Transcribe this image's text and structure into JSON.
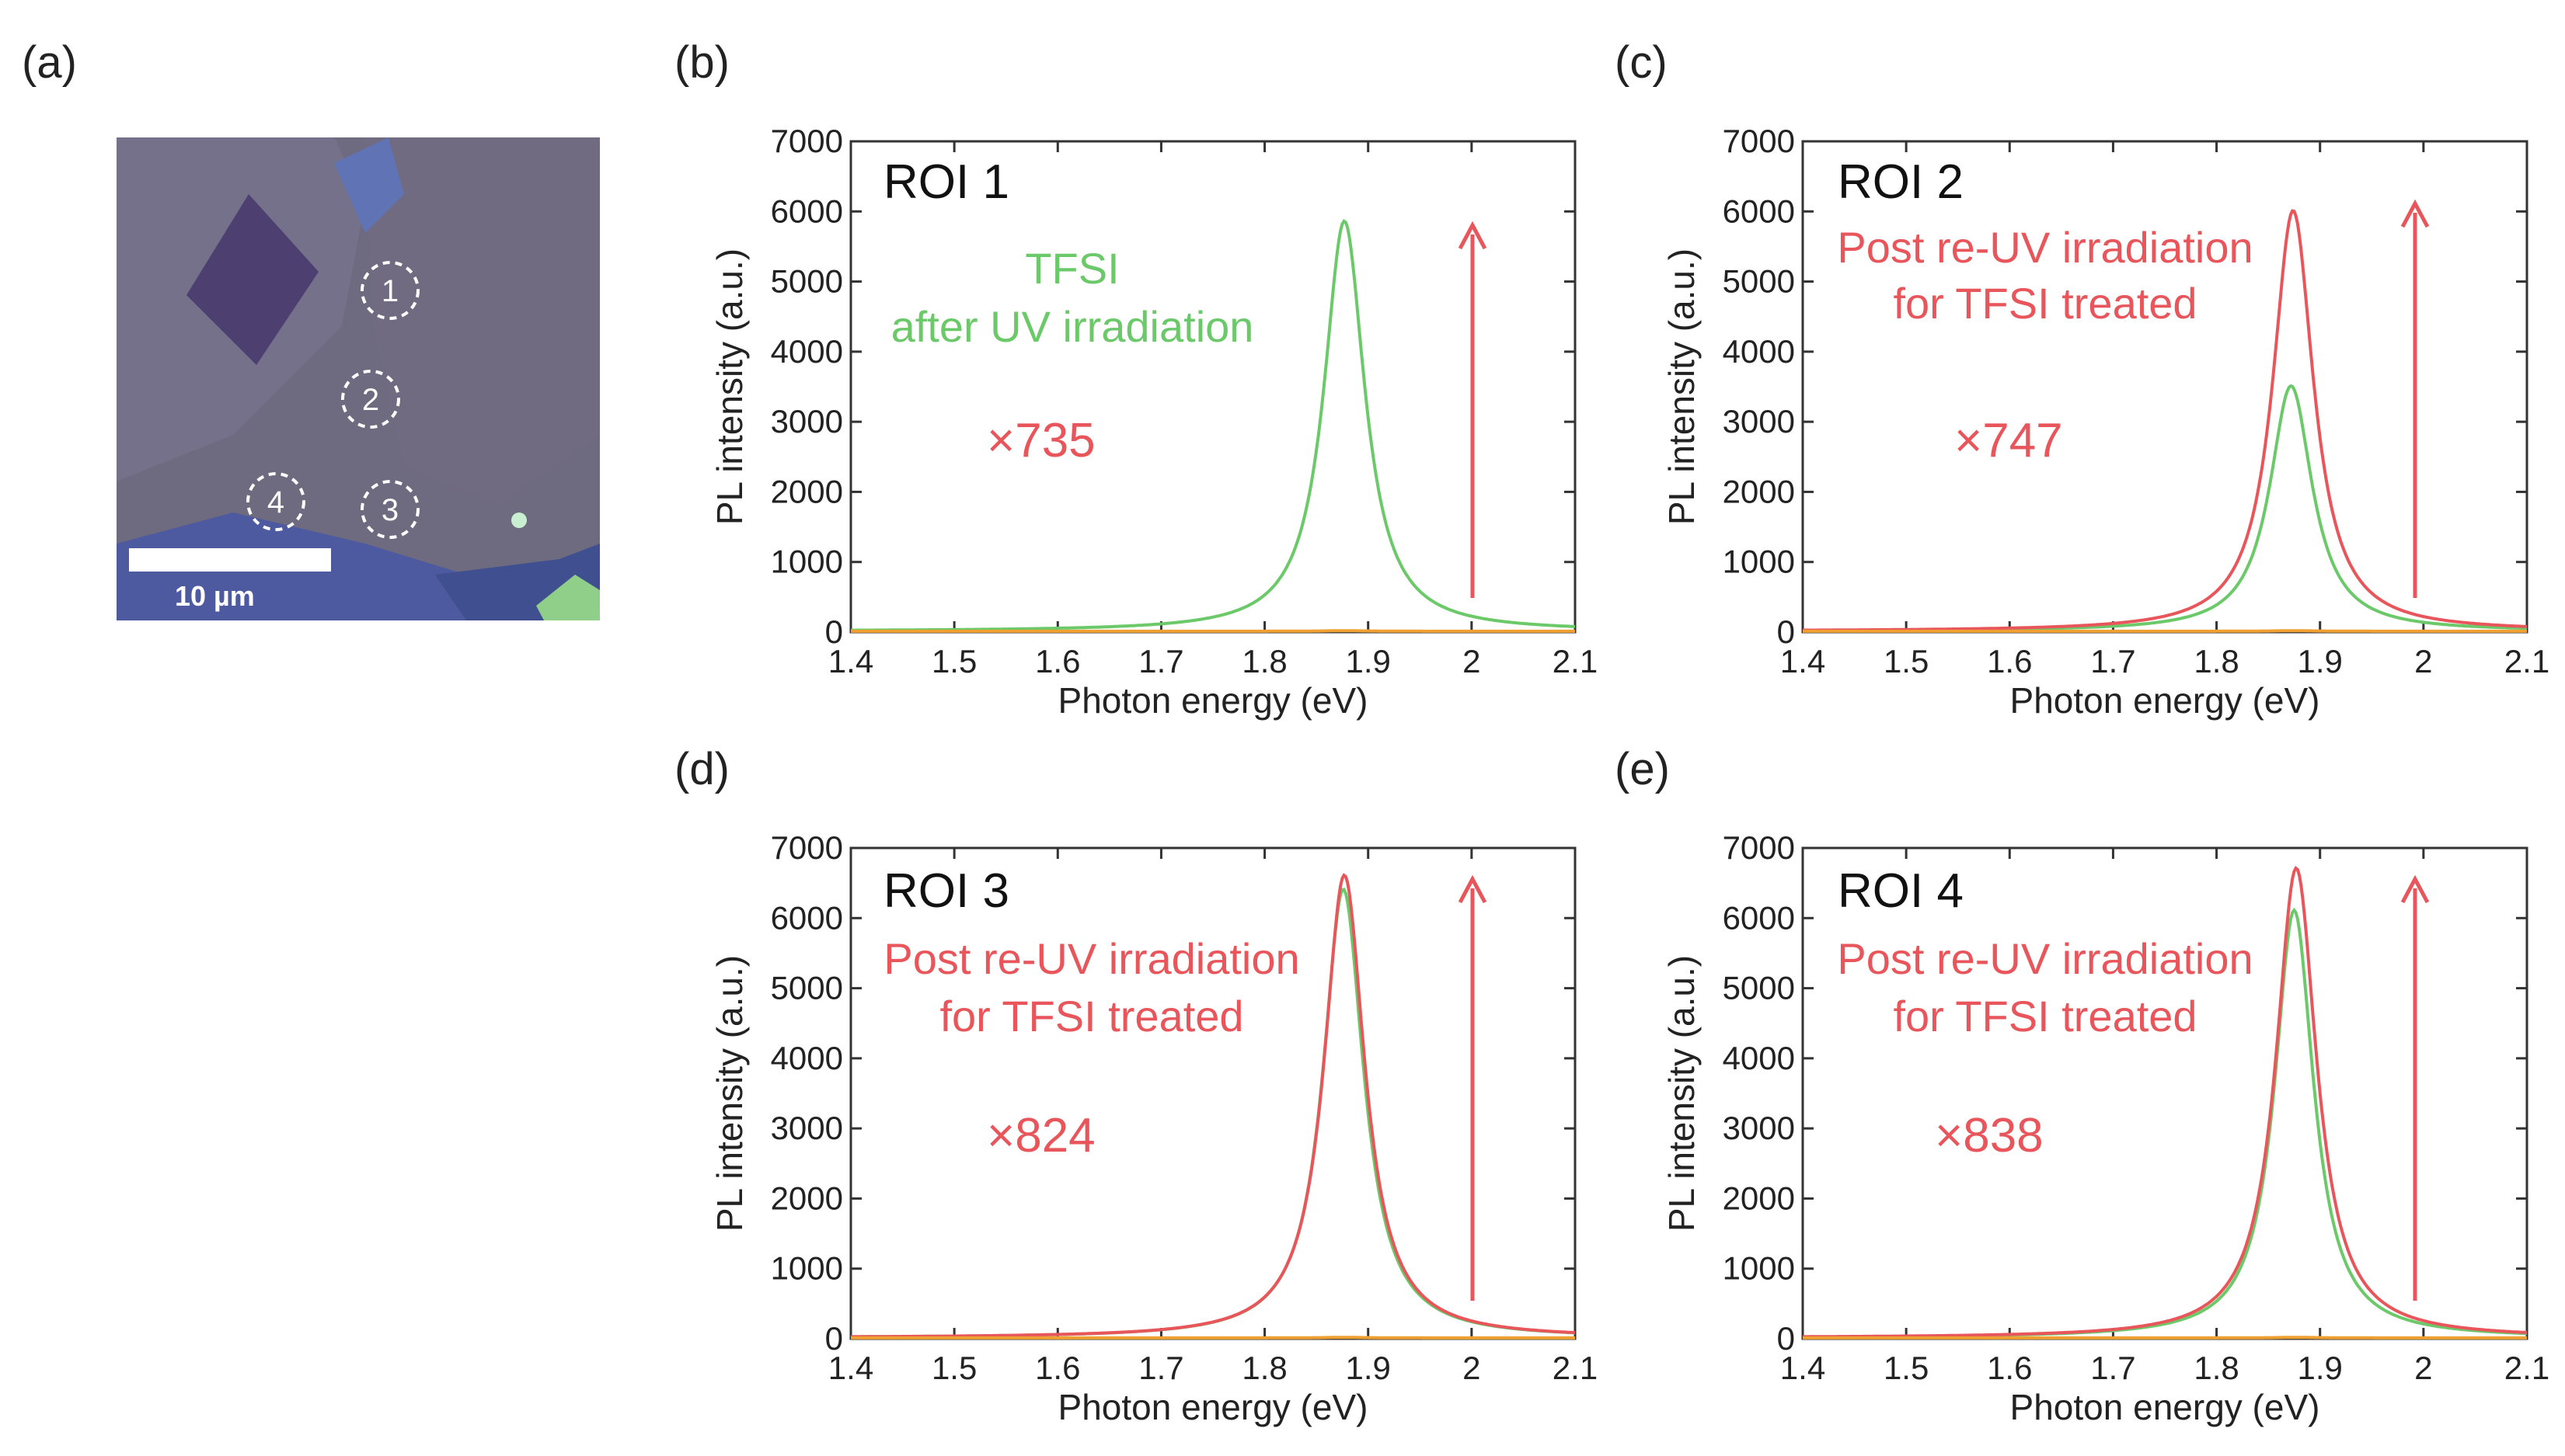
{
  "panels": {
    "a": {
      "label": "(a)",
      "scalebar_label": "10 µm",
      "markers": [
        "1",
        "2",
        "3",
        "4"
      ]
    }
  },
  "colors": {
    "tfsi": "#6cc96a",
    "reuv": "#e8555a",
    "baseline": "#f0a030",
    "arrow": "#e8555a"
  },
  "chart_data": [
    {
      "id": "b",
      "panel_label": "(b)",
      "type": "line",
      "title": "ROI 1",
      "xlabel": "Photon energy (eV)",
      "ylabel": "PL intensity (a.u.)",
      "xlim": [
        1.4,
        2.1
      ],
      "ylim": [
        0,
        7000
      ],
      "xticks": [
        "1.4",
        "1.5",
        "1.6",
        "1.7",
        "1.8",
        "1.9",
        "2",
        "2.1"
      ],
      "yticks": [
        "0",
        "1000",
        "2000",
        "3000",
        "4000",
        "5000",
        "6000",
        "7000"
      ],
      "annotations": [
        "TFSI",
        "after UV irradiation"
      ],
      "annotation_color": "tfsi",
      "factor": "×735",
      "series": [
        {
          "color": "tfsi",
          "peak": 1.877,
          "amplitude": 5850,
          "width": 0.024
        },
        {
          "color": "baseline",
          "peak": 1.877,
          "amplitude": 8,
          "width": 0.024
        }
      ]
    },
    {
      "id": "c",
      "panel_label": "(c)",
      "type": "line",
      "title": "ROI 2",
      "xlabel": "Photon energy (eV)",
      "ylabel": "PL intensity (a.u.)",
      "xlim": [
        1.4,
        2.1
      ],
      "ylim": [
        0,
        7000
      ],
      "xticks": [
        "1.4",
        "1.5",
        "1.6",
        "1.7",
        "1.8",
        "1.9",
        "2",
        "2.1"
      ],
      "yticks": [
        "0",
        "1000",
        "2000",
        "3000",
        "4000",
        "5000",
        "6000",
        "7000"
      ],
      "annotations": [
        "Post re-UV irradiation",
        "for TFSI treated"
      ],
      "annotation_color": "reuv",
      "factor": "×747",
      "series": [
        {
          "color": "tfsi",
          "peak": 1.872,
          "amplitude": 3500,
          "width": 0.025
        },
        {
          "color": "reuv",
          "peak": 1.874,
          "amplitude": 6000,
          "width": 0.024
        },
        {
          "color": "baseline",
          "peak": 1.874,
          "amplitude": 8,
          "width": 0.024
        }
      ]
    },
    {
      "id": "d",
      "panel_label": "(d)",
      "type": "line",
      "title": "ROI 3",
      "xlabel": "Photon energy (eV)",
      "ylabel": "PL intensity (a.u.)",
      "xlim": [
        1.4,
        2.1
      ],
      "ylim": [
        0,
        7000
      ],
      "xticks": [
        "1.4",
        "1.5",
        "1.6",
        "1.7",
        "1.8",
        "1.9",
        "2",
        "2.1"
      ],
      "yticks": [
        "0",
        "1000",
        "2000",
        "3000",
        "4000",
        "5000",
        "6000",
        "7000"
      ],
      "annotations": [
        "Post re-UV irradiation",
        "for TFSI treated"
      ],
      "annotation_color": "reuv",
      "factor": "×824",
      "series": [
        {
          "color": "tfsi",
          "peak": 1.876,
          "amplitude": 6400,
          "width": 0.024
        },
        {
          "color": "reuv",
          "peak": 1.877,
          "amplitude": 6600,
          "width": 0.024
        },
        {
          "color": "baseline",
          "peak": 1.877,
          "amplitude": 8,
          "width": 0.024
        }
      ]
    },
    {
      "id": "e",
      "panel_label": "(e)",
      "type": "line",
      "title": "ROI 4",
      "xlabel": "Photon energy (eV)",
      "ylabel": "PL intensity (a.u.)",
      "xlim": [
        1.4,
        2.1
      ],
      "ylim": [
        0,
        7000
      ],
      "xticks": [
        "1.4",
        "1.5",
        "1.6",
        "1.7",
        "1.8",
        "1.9",
        "2",
        "2.1"
      ],
      "yticks": [
        "0",
        "1000",
        "2000",
        "3000",
        "4000",
        "5000",
        "6000",
        "7000"
      ],
      "annotations": [
        "Post re-UV irradiation",
        "for TFSI treated"
      ],
      "annotation_color": "reuv",
      "factor": "×838",
      "series": [
        {
          "color": "tfsi",
          "peak": 1.875,
          "amplitude": 6100,
          "width": 0.023
        },
        {
          "color": "reuv",
          "peak": 1.877,
          "amplitude": 6700,
          "width": 0.024
        },
        {
          "color": "baseline",
          "peak": 1.877,
          "amplitude": 8,
          "width": 0.024
        }
      ]
    }
  ]
}
